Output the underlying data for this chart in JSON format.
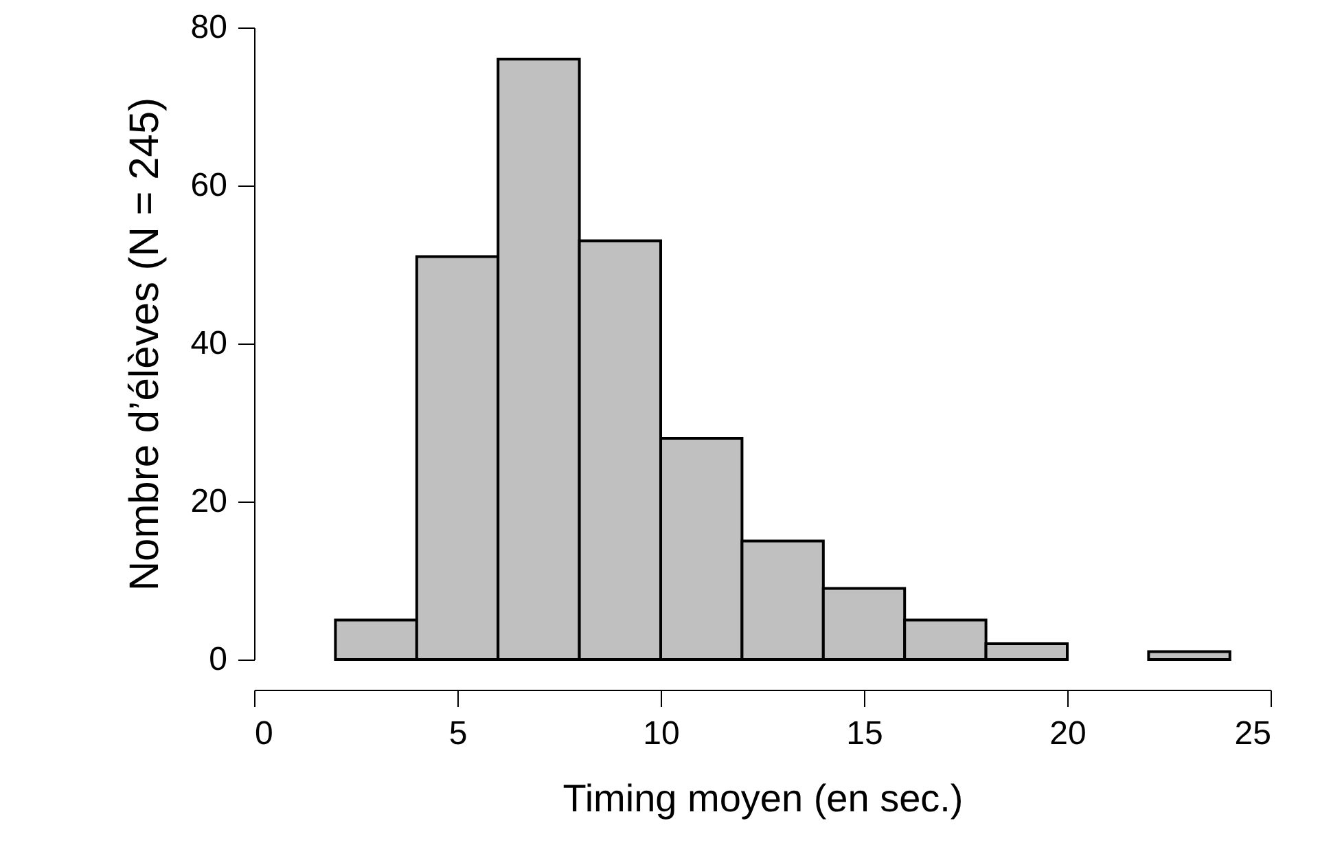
{
  "chart_data": {
    "type": "histogram",
    "xlabel": "Timing moyen   (en sec.)",
    "ylabel": "Nombre d’élèves (N = 245)",
    "bins": [
      2,
      4,
      6,
      8,
      10,
      12,
      14,
      16,
      18,
      20,
      22,
      24
    ],
    "values": [
      5,
      51,
      76,
      53,
      28,
      15,
      9,
      5,
      2,
      0,
      1
    ],
    "color": "#c0c0c0",
    "xlim": [
      0,
      25
    ],
    "xticks": [
      0,
      5,
      10,
      15,
      20,
      25
    ],
    "ylim": [
      0,
      80
    ],
    "yticks": [
      0,
      20,
      40,
      60,
      80
    ],
    "grid": false
  }
}
